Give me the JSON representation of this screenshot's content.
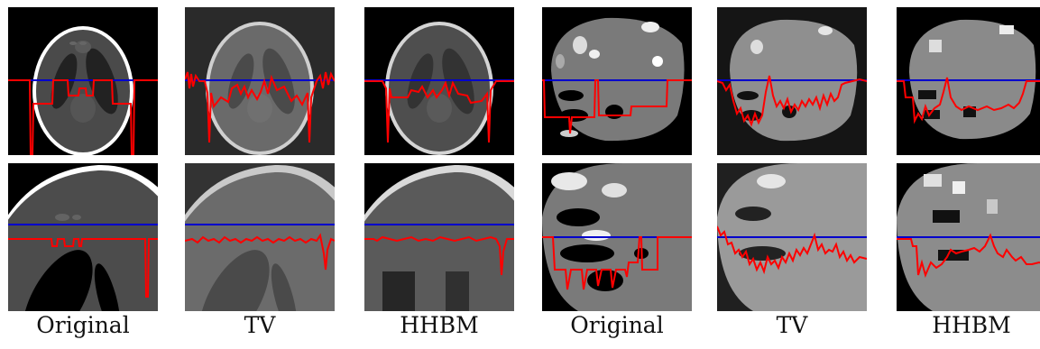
{
  "captions": [
    "Original",
    "TV",
    "HHBM",
    "Original",
    "TV",
    "HHBM"
  ],
  "colors": {
    "scanline": "#0000cc",
    "profile": "#ff0000",
    "background": "#000000"
  },
  "panels": {
    "phantom_full": [
      "Original",
      "TV",
      "HHBM"
    ],
    "phantom_zoom": [
      "Original",
      "TV",
      "HHBM"
    ],
    "brain_full": [
      "Original",
      "TV",
      "HHBM"
    ],
    "brain_zoom": [
      "Original",
      "TV",
      "HHBM"
    ]
  }
}
